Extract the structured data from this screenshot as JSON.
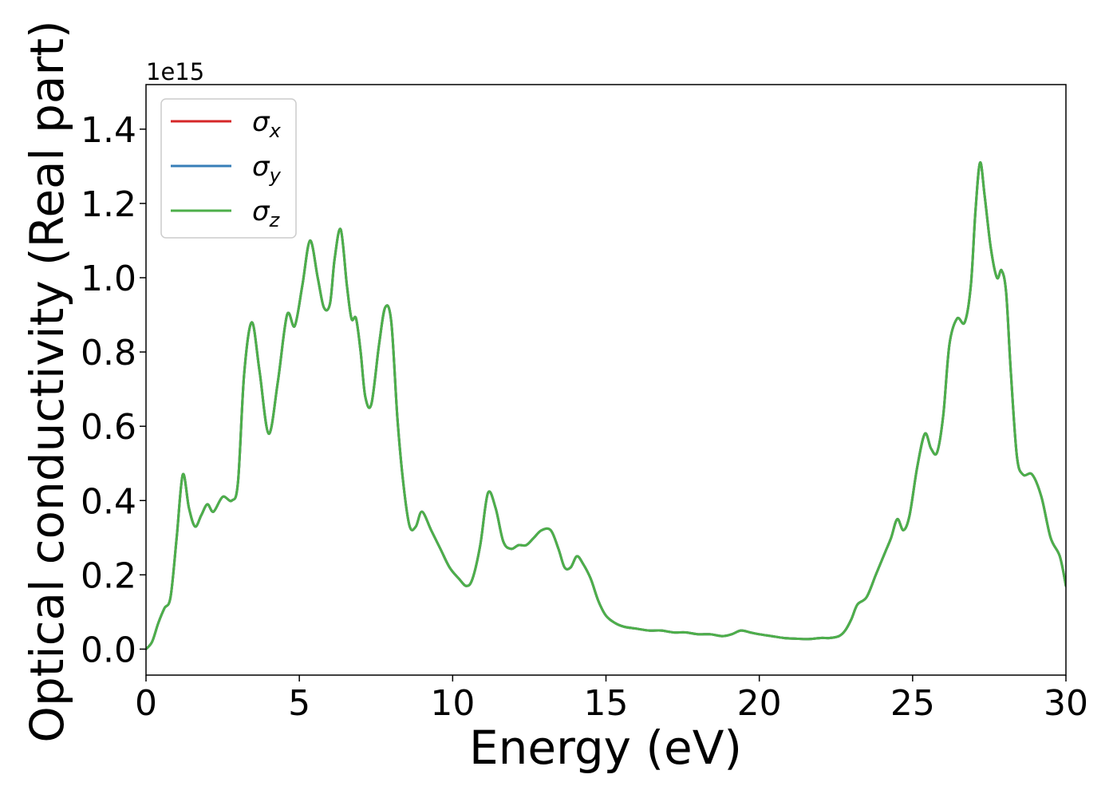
{
  "chart_data": {
    "type": "line",
    "xlabel": "Energy (eV)",
    "ylabel": "Optical conductivity (Real part)",
    "y_offset_text": "1e15",
    "xlim": [
      0,
      30
    ],
    "ylim": [
      -0.07,
      1.52
    ],
    "y_scale_factor": 1000000000000000.0,
    "x_ticks": [
      0,
      5,
      10,
      15,
      20,
      25,
      30
    ],
    "x_tick_labels": [
      "0",
      "5",
      "10",
      "15",
      "20",
      "25",
      "30"
    ],
    "y_ticks": [
      0.0,
      0.2,
      0.4,
      0.6,
      0.8,
      1.0,
      1.2,
      1.4
    ],
    "y_tick_labels": [
      "0.0",
      "0.2",
      "0.4",
      "0.6",
      "0.8",
      "1.0",
      "1.2",
      "1.4"
    ],
    "grid": false,
    "legend_position": "upper-left",
    "legend": [
      {
        "symbol": "σ",
        "sub": "x",
        "color": "#d62728"
      },
      {
        "symbol": "σ",
        "sub": "y",
        "color": "#377eb8"
      },
      {
        "symbol": "σ",
        "sub": "z",
        "color": "#4daf4a"
      }
    ],
    "x": [
      0,
      0.2,
      0.4,
      0.6,
      0.8,
      1.0,
      1.2,
      1.4,
      1.6,
      1.8,
      2.0,
      2.2,
      2.5,
      2.8,
      3.0,
      3.2,
      3.45,
      3.7,
      4.0,
      4.3,
      4.6,
      4.85,
      5.1,
      5.35,
      5.6,
      5.8,
      6.0,
      6.15,
      6.35,
      6.55,
      6.7,
      6.85,
      7.0,
      7.15,
      7.35,
      7.6,
      7.8,
      8.0,
      8.2,
      8.4,
      8.6,
      8.8,
      9.0,
      9.3,
      9.6,
      9.9,
      10.2,
      10.45,
      10.65,
      10.9,
      11.15,
      11.4,
      11.65,
      11.9,
      12.15,
      12.4,
      12.65,
      12.9,
      13.2,
      13.45,
      13.65,
      13.85,
      14.05,
      14.25,
      14.5,
      14.75,
      15.0,
      15.3,
      15.6,
      16.0,
      16.4,
      16.8,
      17.2,
      17.6,
      18.0,
      18.4,
      18.8,
      19.1,
      19.4,
      19.7,
      20.0,
      20.4,
      20.8,
      21.2,
      21.6,
      22.0,
      22.3,
      22.6,
      22.8,
      23.0,
      23.2,
      23.5,
      23.8,
      24.1,
      24.3,
      24.5,
      24.7,
      24.9,
      25.15,
      25.4,
      25.6,
      25.8,
      26.0,
      26.2,
      26.45,
      26.7,
      26.9,
      27.05,
      27.2,
      27.35,
      27.55,
      27.75,
      27.9,
      28.05,
      28.2,
      28.4,
      28.6,
      28.9,
      29.2,
      29.5,
      29.8,
      30.0
    ],
    "series": [
      {
        "name": "σx",
        "color": "#d62728",
        "width": 3,
        "values": [
          0.0,
          0.02,
          0.07,
          0.11,
          0.14,
          0.3,
          0.47,
          0.38,
          0.33,
          0.36,
          0.39,
          0.37,
          0.41,
          0.4,
          0.45,
          0.74,
          0.88,
          0.75,
          0.58,
          0.72,
          0.9,
          0.87,
          0.98,
          1.1,
          1.0,
          0.92,
          0.93,
          1.05,
          1.13,
          0.98,
          0.89,
          0.89,
          0.8,
          0.68,
          0.66,
          0.82,
          0.92,
          0.88,
          0.62,
          0.44,
          0.33,
          0.33,
          0.37,
          0.32,
          0.27,
          0.22,
          0.19,
          0.17,
          0.19,
          0.28,
          0.42,
          0.38,
          0.29,
          0.27,
          0.28,
          0.28,
          0.3,
          0.32,
          0.32,
          0.27,
          0.22,
          0.22,
          0.25,
          0.23,
          0.19,
          0.13,
          0.09,
          0.07,
          0.06,
          0.055,
          0.05,
          0.05,
          0.045,
          0.045,
          0.04,
          0.04,
          0.035,
          0.04,
          0.05,
          0.045,
          0.04,
          0.035,
          0.03,
          0.028,
          0.027,
          0.03,
          0.03,
          0.035,
          0.05,
          0.08,
          0.12,
          0.14,
          0.2,
          0.26,
          0.3,
          0.35,
          0.32,
          0.36,
          0.49,
          0.58,
          0.54,
          0.53,
          0.63,
          0.82,
          0.89,
          0.88,
          0.98,
          1.18,
          1.31,
          1.22,
          1.08,
          1.0,
          1.02,
          0.96,
          0.75,
          0.52,
          0.47,
          0.47,
          0.41,
          0.3,
          0.25,
          0.17
        ]
      },
      {
        "name": "σy",
        "color": "#377eb8",
        "width": 3,
        "values": [
          0.0,
          0.02,
          0.07,
          0.11,
          0.14,
          0.3,
          0.47,
          0.38,
          0.33,
          0.36,
          0.39,
          0.37,
          0.41,
          0.4,
          0.45,
          0.74,
          0.88,
          0.75,
          0.58,
          0.72,
          0.9,
          0.87,
          0.98,
          1.1,
          1.0,
          0.92,
          0.93,
          1.05,
          1.13,
          0.98,
          0.89,
          0.89,
          0.8,
          0.68,
          0.66,
          0.82,
          0.92,
          0.88,
          0.62,
          0.44,
          0.33,
          0.33,
          0.37,
          0.32,
          0.27,
          0.22,
          0.19,
          0.17,
          0.19,
          0.28,
          0.42,
          0.38,
          0.29,
          0.27,
          0.28,
          0.28,
          0.3,
          0.32,
          0.32,
          0.27,
          0.22,
          0.22,
          0.25,
          0.23,
          0.19,
          0.13,
          0.09,
          0.07,
          0.06,
          0.055,
          0.05,
          0.05,
          0.045,
          0.045,
          0.04,
          0.04,
          0.035,
          0.04,
          0.05,
          0.045,
          0.04,
          0.035,
          0.03,
          0.028,
          0.027,
          0.03,
          0.03,
          0.035,
          0.05,
          0.08,
          0.12,
          0.14,
          0.2,
          0.26,
          0.3,
          0.35,
          0.32,
          0.36,
          0.49,
          0.58,
          0.54,
          0.53,
          0.63,
          0.82,
          0.89,
          0.88,
          0.98,
          1.18,
          1.31,
          1.22,
          1.08,
          1.0,
          1.02,
          0.96,
          0.75,
          0.52,
          0.47,
          0.47,
          0.41,
          0.3,
          0.25,
          0.17
        ]
      },
      {
        "name": "σz",
        "color": "#4daf4a",
        "width": 3,
        "values": [
          0.0,
          0.02,
          0.07,
          0.11,
          0.14,
          0.3,
          0.47,
          0.38,
          0.33,
          0.36,
          0.39,
          0.37,
          0.41,
          0.4,
          0.45,
          0.74,
          0.88,
          0.75,
          0.58,
          0.72,
          0.9,
          0.87,
          0.98,
          1.1,
          1.0,
          0.92,
          0.93,
          1.05,
          1.13,
          0.98,
          0.89,
          0.89,
          0.8,
          0.68,
          0.66,
          0.82,
          0.92,
          0.88,
          0.62,
          0.44,
          0.33,
          0.33,
          0.37,
          0.32,
          0.27,
          0.22,
          0.19,
          0.17,
          0.19,
          0.28,
          0.42,
          0.38,
          0.29,
          0.27,
          0.28,
          0.28,
          0.3,
          0.32,
          0.32,
          0.27,
          0.22,
          0.22,
          0.25,
          0.23,
          0.19,
          0.13,
          0.09,
          0.07,
          0.06,
          0.055,
          0.05,
          0.05,
          0.045,
          0.045,
          0.04,
          0.04,
          0.035,
          0.04,
          0.05,
          0.045,
          0.04,
          0.035,
          0.03,
          0.028,
          0.027,
          0.03,
          0.03,
          0.035,
          0.05,
          0.08,
          0.12,
          0.14,
          0.2,
          0.26,
          0.3,
          0.35,
          0.32,
          0.36,
          0.49,
          0.58,
          0.54,
          0.53,
          0.63,
          0.82,
          0.89,
          0.88,
          0.98,
          1.18,
          1.31,
          1.22,
          1.08,
          1.0,
          1.02,
          0.96,
          0.75,
          0.52,
          0.47,
          0.47,
          0.41,
          0.3,
          0.25,
          0.17
        ]
      }
    ]
  }
}
